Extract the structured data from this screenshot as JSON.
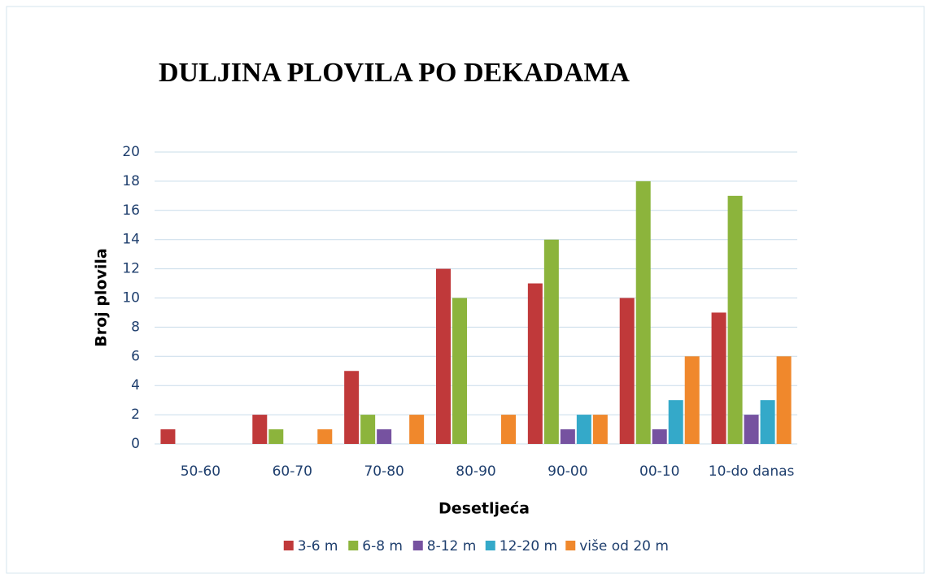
{
  "chart_data": {
    "type": "bar",
    "title": "DULJINA PLOVILA PO DEKADAMA",
    "x_label": "Desetljeća",
    "y_label": "Broj plovila",
    "categories": [
      "50-60",
      "60-70",
      "70-80",
      "80-90",
      "90-00",
      "00-10",
      "10-do danas"
    ],
    "series": [
      {
        "name": "3-6 m",
        "color": "#c0393a",
        "values": [
          1,
          2,
          5,
          12,
          11,
          10,
          9
        ]
      },
      {
        "name": "6-8 m",
        "color": "#8cb43c",
        "values": [
          0,
          1,
          2,
          10,
          14,
          18,
          17
        ]
      },
      {
        "name": "8-12 m",
        "color": "#7652a0",
        "values": [
          0,
          0,
          1,
          0,
          1,
          1,
          2
        ]
      },
      {
        "name": "12-20 m",
        "color": "#34a9c9",
        "values": [
          0,
          0,
          0,
          0,
          2,
          3,
          3
        ]
      },
      {
        "name": "više od 20 m",
        "color": "#f0882c",
        "values": [
          0,
          1,
          2,
          2,
          2,
          6,
          6
        ]
      }
    ],
    "ylim": [
      0,
      20
    ],
    "yticks": [
      0,
      2,
      4,
      6,
      8,
      10,
      12,
      14,
      16,
      18,
      20
    ],
    "grid": true,
    "legend": "bottom"
  }
}
